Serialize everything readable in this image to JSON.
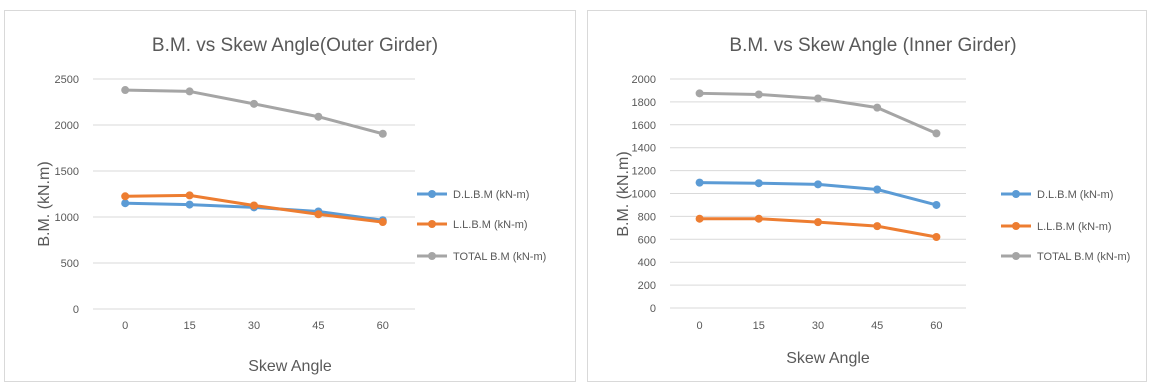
{
  "chart_data": [
    {
      "type": "line",
      "title": "B.M. vs Skew Angle(Outer Girder)",
      "xlabel": "Skew Angle",
      "ylabel": "B.M. (kN.m)",
      "categories": [
        "0",
        "15",
        "30",
        "45",
        "60"
      ],
      "ylim": [
        0,
        2500
      ],
      "yticks": [
        0,
        500,
        1000,
        1500,
        2000,
        2500
      ],
      "grid": true,
      "legend": "right",
      "series": [
        {
          "name": "D.L.B.M (kN-m)",
          "color": "#5b9bd5",
          "values": [
            1150,
            1135,
            1105,
            1060,
            965
          ]
        },
        {
          "name": "L.L.B.M (kN-m)",
          "color": "#ed7d31",
          "values": [
            1225,
            1235,
            1125,
            1030,
            945
          ]
        },
        {
          "name": "TOTAL B.M (kN-m)",
          "color": "#a5a5a5",
          "values": [
            2380,
            2365,
            2230,
            2090,
            1905
          ]
        }
      ]
    },
    {
      "type": "line",
      "title": "B.M. vs Skew Angle (Inner Girder)",
      "xlabel": "Skew Angle",
      "ylabel": "B.M. (kN.m)",
      "categories": [
        "0",
        "15",
        "30",
        "45",
        "60"
      ],
      "ylim": [
        0,
        2000
      ],
      "yticks": [
        0,
        200,
        400,
        600,
        800,
        1000,
        1200,
        1400,
        1600,
        1800,
        2000
      ],
      "grid": true,
      "legend": "right",
      "series": [
        {
          "name": "D.L.B.M (kN-m)",
          "color": "#5b9bd5",
          "values": [
            1095,
            1090,
            1080,
            1035,
            900
          ]
        },
        {
          "name": "L.L.B.M (kN-m)",
          "color": "#ed7d31",
          "values": [
            780,
            780,
            750,
            715,
            620
          ]
        },
        {
          "name": "TOTAL B.M (kN-m)",
          "color": "#a5a5a5",
          "values": [
            1875,
            1865,
            1830,
            1750,
            1525
          ]
        }
      ]
    }
  ]
}
